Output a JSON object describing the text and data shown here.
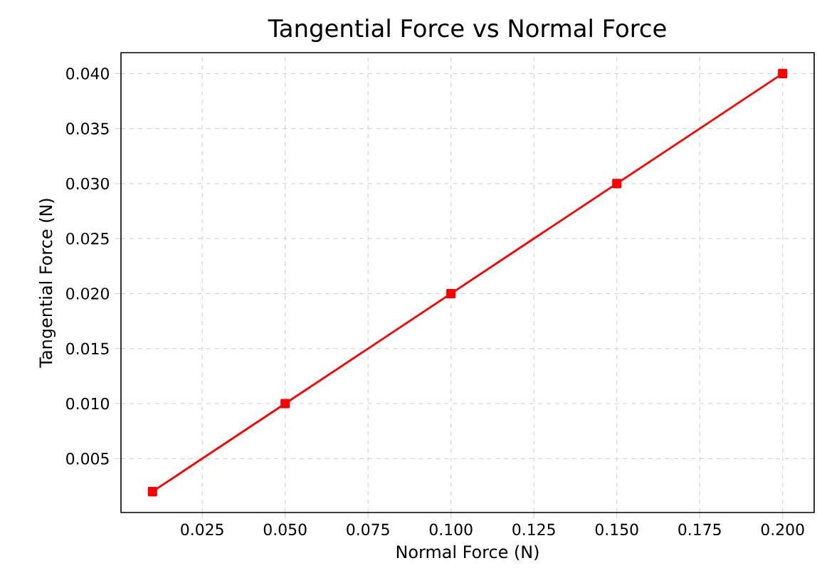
{
  "chart_data": {
    "type": "line",
    "title": "Tangential Force vs Normal Force",
    "xlabel": "Normal Force (N)",
    "ylabel": "Tangential Force (N)",
    "x": [
      0.01,
      0.05,
      0.1,
      0.15,
      0.2
    ],
    "series": [
      {
        "color": "#ff0000",
        "values": [
          0.002,
          0.01,
          0.02,
          0.03,
          0.04
        ]
      }
    ],
    "xlim": [
      0.0005,
      0.2095
    ],
    "ylim": [
      0.0001,
      0.0419
    ],
    "xticks": [
      {
        "value": 0.025,
        "label": "0.025"
      },
      {
        "value": 0.05,
        "label": "0.050"
      },
      {
        "value": 0.075,
        "label": "0.075"
      },
      {
        "value": 0.1,
        "label": "0.100"
      },
      {
        "value": 0.125,
        "label": "0.125"
      },
      {
        "value": 0.15,
        "label": "0.150"
      },
      {
        "value": 0.175,
        "label": "0.175"
      },
      {
        "value": 0.2,
        "label": "0.200"
      }
    ],
    "yticks": [
      {
        "value": 0.005,
        "label": "0.005"
      },
      {
        "value": 0.01,
        "label": "0.010"
      },
      {
        "value": 0.015,
        "label": "0.015"
      },
      {
        "value": 0.02,
        "label": "0.020"
      },
      {
        "value": 0.025,
        "label": "0.025"
      },
      {
        "value": 0.03,
        "label": "0.030"
      },
      {
        "value": 0.035,
        "label": "0.035"
      },
      {
        "value": 0.04,
        "label": "0.040"
      }
    ],
    "grid": true,
    "marker": "square",
    "line_style": "solid"
  }
}
